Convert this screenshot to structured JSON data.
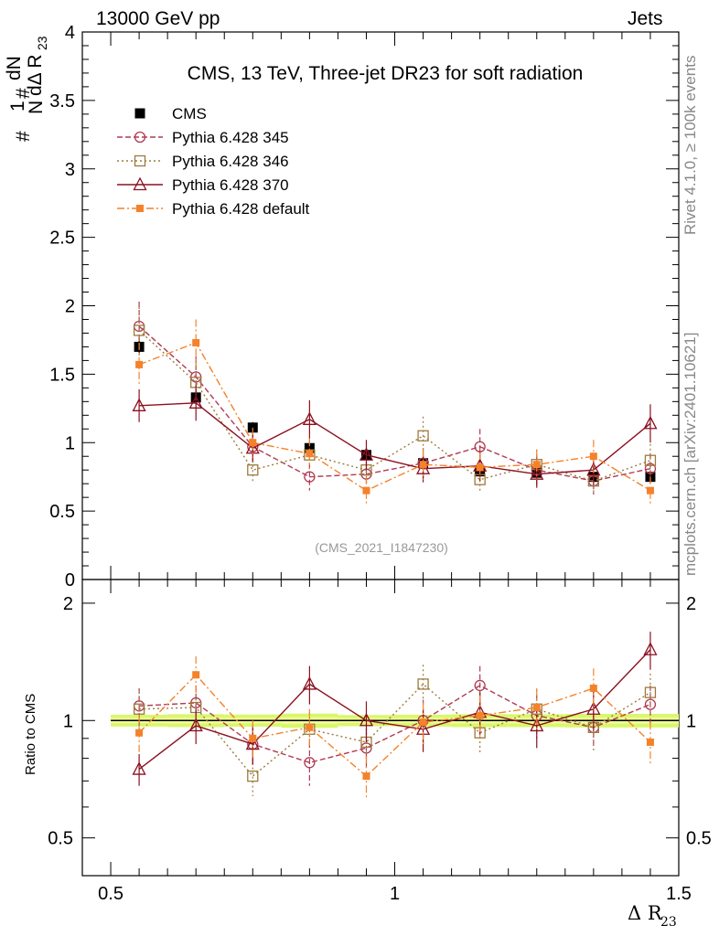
{
  "header": {
    "left": "13000 GeV pp",
    "right": "Jets"
  },
  "side_labels": {
    "rivet": "Rivet 4.1.0, ≥ 100k events",
    "mcplots": "mcplots.cern.ch [arXiv:2401.10621]"
  },
  "analysis_id": "(CMS_2021_I1847230)",
  "colors": {
    "cms": "#000000",
    "p345": "#b03a53",
    "p346": "#9c7a3c",
    "p370": "#8b1020",
    "pdef": "#f4822a",
    "band": "#d9f76b",
    "band_inner": "#f2fb9a"
  },
  "chart_data": [
    {
      "type": "scatter",
      "title": "CMS, 13 TeV, Three-jet DR23 for soft radiation",
      "ylabel": "#frac{1}{N}#frac{dN}{dΔ R23}",
      "ylabel_parts": {
        "hash1": "#",
        "one": "1",
        "N": "N",
        "hash2": "#",
        "dN": "dN",
        "dDR": "dΔ R",
        "sub": "23"
      },
      "xlim": [
        0.45,
        1.5
      ],
      "ylim": [
        0,
        4
      ],
      "yticks": [
        "0",
        "0.5",
        "1",
        "1.5",
        "2",
        "2.5",
        "3",
        "3.5",
        "4"
      ],
      "legend_position": "top-left",
      "x": [
        0.55,
        0.65,
        0.75,
        0.85,
        0.95,
        1.05,
        1.15,
        1.25,
        1.35,
        1.45
      ],
      "series": [
        {
          "name": "CMS",
          "key": "cms",
          "marker": "filled-square",
          "values": [
            1.7,
            1.33,
            1.11,
            0.96,
            0.91,
            0.85,
            0.79,
            0.78,
            0.75,
            0.75
          ],
          "errors": [
            0.06,
            0.05,
            0.04,
            0.04,
            0.03,
            0.03,
            0.03,
            0.03,
            0.03,
            0.03
          ]
        },
        {
          "name": "Pythia 6.428 345",
          "key": "p345",
          "marker": "open-circle",
          "values": [
            1.85,
            1.48,
            0.97,
            0.75,
            0.77,
            0.85,
            0.97,
            0.8,
            0.72,
            0.81
          ],
          "errors": [
            0.18,
            0.15,
            0.1,
            0.1,
            0.09,
            0.11,
            0.13,
            0.11,
            0.1,
            0.11
          ]
        },
        {
          "name": "Pythia 6.428 346",
          "key": "p346",
          "marker": "open-square",
          "values": [
            1.82,
            1.44,
            0.8,
            0.91,
            0.8,
            1.05,
            0.73,
            0.84,
            0.72,
            0.87
          ],
          "errors": [
            0.17,
            0.15,
            0.1,
            0.11,
            0.09,
            0.14,
            0.1,
            0.11,
            0.1,
            0.12
          ]
        },
        {
          "name": "Pythia 6.428 370",
          "key": "p370",
          "marker": "open-triangle",
          "values": [
            1.27,
            1.29,
            0.96,
            1.17,
            0.91,
            0.81,
            0.83,
            0.77,
            0.8,
            1.14
          ],
          "errors": [
            0.12,
            0.13,
            0.1,
            0.14,
            0.11,
            0.1,
            0.11,
            0.1,
            0.11,
            0.14
          ]
        },
        {
          "name": "Pythia 6.428 default",
          "key": "pdef",
          "marker": "filled-small-square",
          "values": [
            1.57,
            1.73,
            1.0,
            0.92,
            0.65,
            0.84,
            0.82,
            0.84,
            0.9,
            0.65
          ],
          "errors": [
            0.16,
            0.17,
            0.11,
            0.11,
            0.1,
            0.11,
            0.11,
            0.11,
            0.12,
            0.1
          ]
        }
      ]
    },
    {
      "type": "scatter",
      "title": "",
      "xlabel": "Δ R",
      "xlabel_sub": "23",
      "ylabel": "Ratio to CMS",
      "yscale": "log",
      "xlim": [
        0.45,
        1.5
      ],
      "ylim": [
        0.4,
        2.3
      ],
      "xticks": [
        "0.5",
        "1",
        "1.5"
      ],
      "yticks": [
        "0.5",
        "1",
        "2"
      ],
      "x": [
        0.55,
        0.65,
        0.75,
        0.85,
        0.95,
        1.05,
        1.15,
        1.25,
        1.35,
        1.45
      ],
      "band_relative_error": [
        0.035,
        0.038,
        0.036,
        0.042,
        0.033,
        0.035,
        0.038,
        0.038,
        0.04,
        0.04
      ],
      "series": [
        {
          "name": "Pythia 6.428 345",
          "key": "p345",
          "values": [
            1.09,
            1.11,
            0.87,
            0.78,
            0.85,
            1.0,
            1.23,
            1.03,
            0.96,
            1.1
          ],
          "errors": [
            0.12,
            0.12,
            0.1,
            0.1,
            0.1,
            0.13,
            0.15,
            0.13,
            0.12,
            0.13
          ]
        },
        {
          "name": "Pythia 6.428 346",
          "key": "p346",
          "values": [
            1.07,
            1.08,
            0.72,
            0.95,
            0.88,
            1.24,
            0.93,
            1.07,
            0.96,
            1.18
          ],
          "errors": [
            0.12,
            0.12,
            0.08,
            0.1,
            0.1,
            0.15,
            0.11,
            0.13,
            0.12,
            0.14
          ]
        },
        {
          "name": "Pythia 6.428 370",
          "key": "p370",
          "values": [
            0.75,
            0.97,
            0.87,
            1.24,
            1.0,
            0.95,
            1.05,
            0.97,
            1.07,
            1.52
          ],
          "errors": [
            0.07,
            0.1,
            0.1,
            0.14,
            0.12,
            0.12,
            0.13,
            0.12,
            0.13,
            0.17
          ]
        },
        {
          "name": "Pythia 6.428 default",
          "key": "pdef",
          "values": [
            0.93,
            1.31,
            0.9,
            0.96,
            0.72,
            0.99,
            1.03,
            1.08,
            1.21,
            0.88
          ],
          "errors": [
            0.1,
            0.15,
            0.1,
            0.11,
            0.09,
            0.12,
            0.13,
            0.13,
            0.15,
            0.11
          ]
        }
      ]
    }
  ]
}
